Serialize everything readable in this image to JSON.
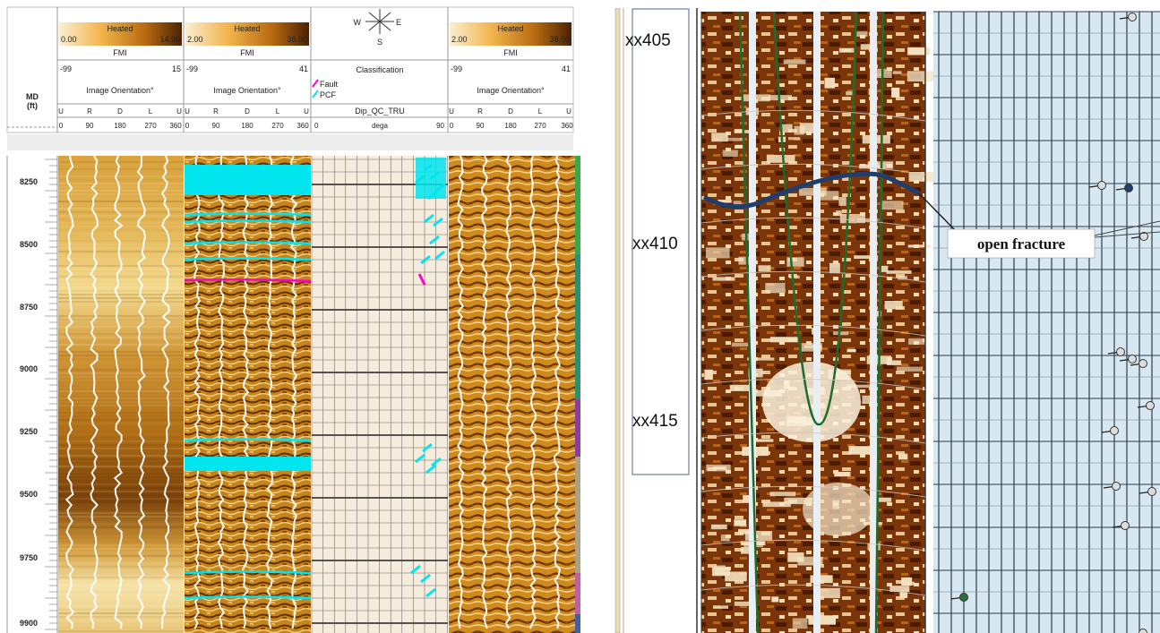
{
  "left_log": {
    "depth_header": {
      "line1": "MD",
      "line2": "(ft)"
    },
    "depth_labels": [
      "8250",
      "8500",
      "8750",
      "9000",
      "9250",
      "9500",
      "9750",
      "9900"
    ],
    "track1": {
      "colorbar_title": "Heated",
      "colorbar_min": "0.00",
      "colorbar_max": "14.90",
      "tool": "FMI",
      "orient_min": "-99",
      "orient_max": "15",
      "orient_title": "Image Orientation°",
      "dir_labels": [
        "U",
        "R",
        "D",
        "L",
        "U"
      ],
      "deg_labels": [
        "0",
        "90",
        "180",
        "270",
        "360"
      ]
    },
    "track2": {
      "colorbar_title": "Heated",
      "colorbar_min": "2.00",
      "colorbar_max": "38.00",
      "tool": "FMI",
      "orient_min": "-99",
      "orient_max": "41",
      "orient_title": "Image Orientation°",
      "dir_labels": [
        "U",
        "R",
        "D",
        "L",
        "U"
      ],
      "deg_labels": [
        "0",
        "90",
        "180",
        "270",
        "360"
      ]
    },
    "track3": {
      "compass": {
        "w": "W",
        "e": "E",
        "s": "S"
      },
      "classification_title": "Classification",
      "legend": [
        {
          "label": "Fault",
          "color": "#ff00cc"
        },
        {
          "label": "PCF",
          "color": "#00e5ee"
        }
      ],
      "dip_title": "Dip_QC_TRU",
      "scale_min": "0",
      "scale_unit": "dega",
      "scale_max": "90"
    },
    "track4": {
      "colorbar_title": "Heated",
      "colorbar_min": "2.00",
      "colorbar_max": "38.00",
      "tool": "FMI",
      "orient_min": "-99",
      "orient_max": "41",
      "orient_title": "Image Orientation°",
      "dir_labels": [
        "U",
        "R",
        "D",
        "L",
        "U"
      ],
      "deg_labels": [
        "0",
        "90",
        "180",
        "270",
        "360"
      ]
    },
    "colors": {
      "fracture_pcf": "#00e5ee",
      "fracture_fault": "#ff00cc",
      "image_gold": "#c8860e",
      "image_dark": "#6b3a06"
    }
  },
  "right_log": {
    "depth_labels": [
      "xx405",
      "xx410",
      "xx415"
    ],
    "annotation": "open fracture",
    "colors": {
      "image_dark": "#5a2505",
      "image_light": "#f4e6c8",
      "dip_panel_bg": "#d8e8f2",
      "green_curve": "#1e6b2e",
      "fracture_line": "#1f3d6e"
    }
  }
}
